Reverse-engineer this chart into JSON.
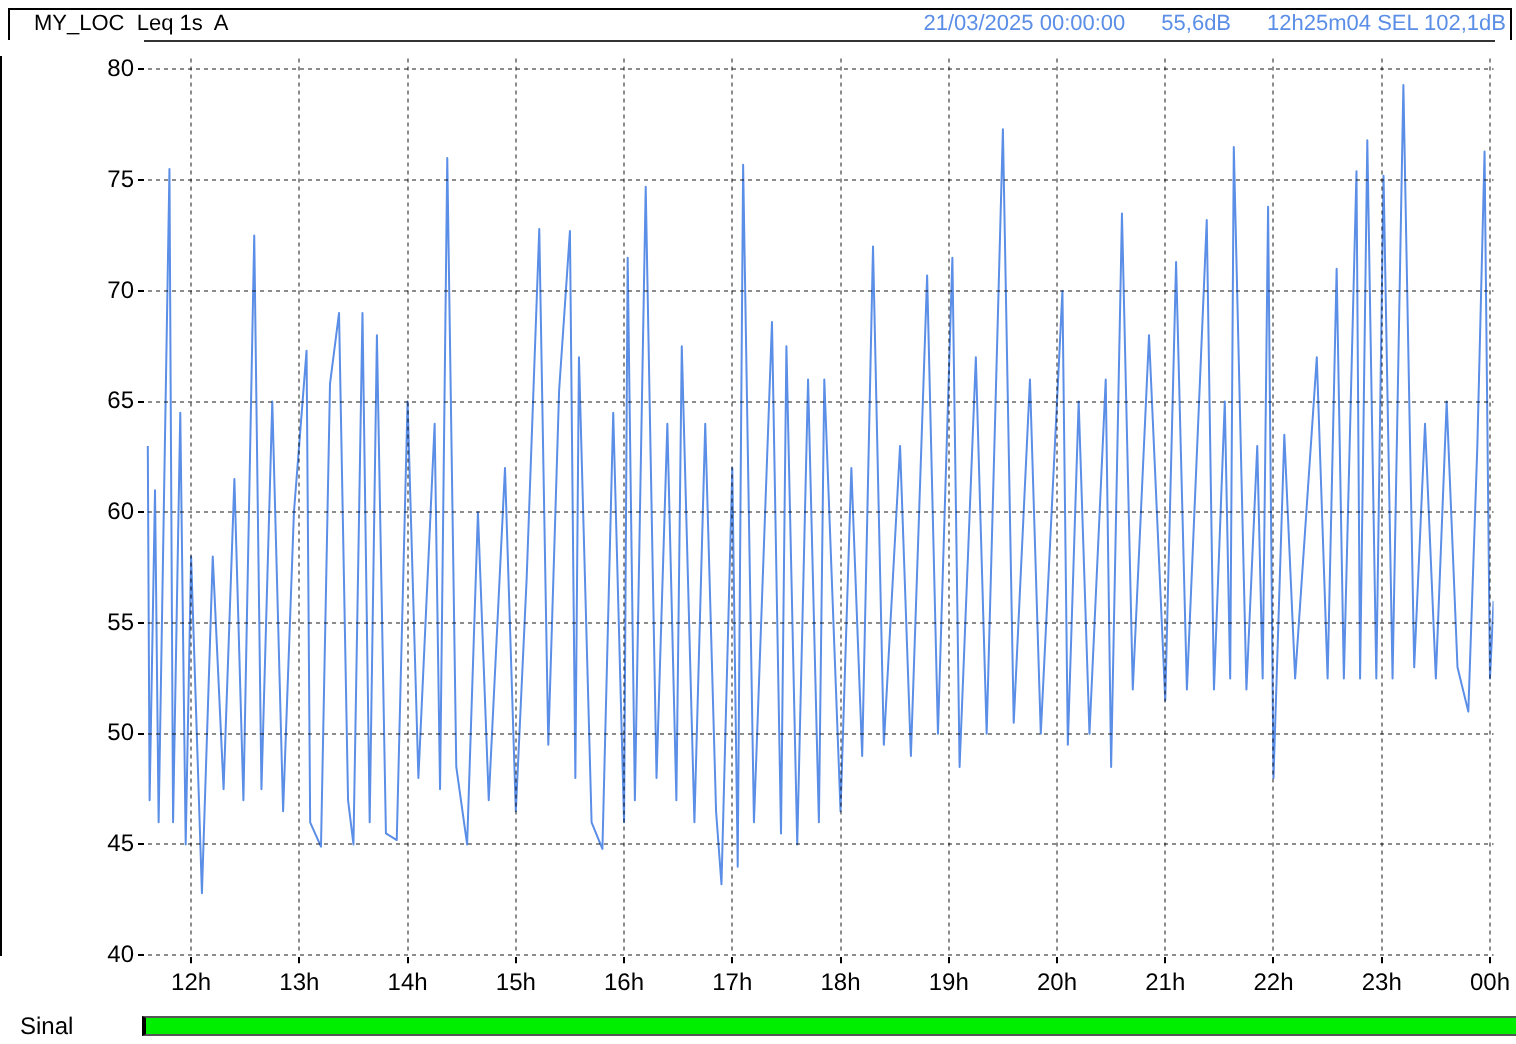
{
  "chart_data": {
    "type": "line",
    "title": "MY_LOC  Leq 1s  A",
    "annotations": [
      "21/03/2025 00:00:00",
      "55,6dB",
      "12h25m04 SEL 102,1dB",
      "Sinal"
    ],
    "x": [
      "2025-03-21T11:36",
      "2025-03-21T11:37",
      "2025-03-21T11:40",
      "2025-03-21T11:42",
      "2025-03-21T11:48",
      "2025-03-21T11:50",
      "2025-03-21T11:54",
      "2025-03-21T11:57",
      "2025-03-21T12:00",
      "2025-03-21T12:06",
      "2025-03-21T12:12",
      "2025-03-21T12:18",
      "2025-03-21T12:24",
      "2025-03-21T12:29",
      "2025-03-21T12:35",
      "2025-03-21T12:39",
      "2025-03-21T12:45",
      "2025-03-21T12:51",
      "2025-03-21T12:57",
      "2025-03-21T13:04",
      "2025-03-21T13:06",
      "2025-03-21T13:12",
      "2025-03-21T13:17",
      "2025-03-21T13:22",
      "2025-03-21T13:27",
      "2025-03-21T13:30",
      "2025-03-21T13:35",
      "2025-03-21T13:39",
      "2025-03-21T13:43",
      "2025-03-21T13:48",
      "2025-03-21T13:54",
      "2025-03-21T14:00",
      "2025-03-21T14:06",
      "2025-03-21T14:15",
      "2025-03-21T14:18",
      "2025-03-21T14:22",
      "2025-03-21T14:27",
      "2025-03-21T14:33",
      "2025-03-21T14:39",
      "2025-03-21T14:45",
      "2025-03-21T14:54",
      "2025-03-21T15:00",
      "2025-03-21T15:06",
      "2025-03-21T15:13",
      "2025-03-21T15:18",
      "2025-03-21T15:24",
      "2025-03-21T15:30",
      "2025-03-21T15:33",
      "2025-03-21T15:35",
      "2025-03-21T15:42",
      "2025-03-21T15:48",
      "2025-03-21T15:54",
      "2025-03-21T16:00",
      "2025-03-21T16:02",
      "2025-03-21T16:06",
      "2025-03-21T16:12",
      "2025-03-21T16:18",
      "2025-03-21T16:24",
      "2025-03-21T16:29",
      "2025-03-21T16:32",
      "2025-03-21T16:39",
      "2025-03-21T16:45",
      "2025-03-21T16:51",
      "2025-03-21T16:54",
      "2025-03-21T17:00",
      "2025-03-21T17:03",
      "2025-03-21T17:06",
      "2025-03-21T17:12",
      "2025-03-21T17:22",
      "2025-03-21T17:27",
      "2025-03-21T17:30",
      "2025-03-21T17:36",
      "2025-03-21T17:42",
      "2025-03-21T17:48",
      "2025-03-21T17:51",
      "2025-03-21T18:00",
      "2025-03-21T18:06",
      "2025-03-21T18:12",
      "2025-03-21T18:18",
      "2025-03-21T18:24",
      "2025-03-21T18:33",
      "2025-03-21T18:39",
      "2025-03-21T18:48",
      "2025-03-21T18:54",
      "2025-03-21T19:02",
      "2025-03-21T19:06",
      "2025-03-21T19:15",
      "2025-03-21T19:21",
      "2025-03-21T19:30",
      "2025-03-21T19:36",
      "2025-03-21T19:45",
      "2025-03-21T19:51",
      "2025-03-21T20:03",
      "2025-03-21T20:06",
      "2025-03-21T20:12",
      "2025-03-21T20:18",
      "2025-03-21T20:27",
      "2025-03-21T20:30",
      "2025-03-21T20:36",
      "2025-03-21T20:42",
      "2025-03-21T20:51",
      "2025-03-21T21:00",
      "2025-03-21T21:06",
      "2025-03-21T21:12",
      "2025-03-21T21:23",
      "2025-03-21T21:27",
      "2025-03-21T21:33",
      "2025-03-21T21:36",
      "2025-03-21T21:38",
      "2025-03-21T21:45",
      "2025-03-21T21:51",
      "2025-03-21T21:54",
      "2025-03-21T21:57",
      "2025-03-21T22:00",
      "2025-03-21T22:06",
      "2025-03-21T22:12",
      "2025-03-21T22:24",
      "2025-03-21T22:30",
      "2025-03-21T22:35",
      "2025-03-21T22:39",
      "2025-03-21T22:46",
      "2025-03-21T22:48",
      "2025-03-21T22:52",
      "2025-03-21T22:57",
      "2025-03-21T23:01",
      "2025-03-21T23:06",
      "2025-03-21T23:12",
      "2025-03-21T23:18",
      "2025-03-21T23:24",
      "2025-03-21T23:30",
      "2025-03-21T23:36",
      "2025-03-21T23:42",
      "2025-03-21T23:48",
      "2025-03-21T23:53",
      "2025-03-21T23:57",
      "2025-03-22T00:00",
      "2025-03-22T00:02"
    ],
    "series": [
      {
        "color": "#5b8ee6",
        "values": [
          63,
          47,
          61,
          46,
          75.5,
          46,
          64.5,
          45,
          58,
          42.8,
          58,
          47.5,
          61.5,
          47,
          72.5,
          47.5,
          65,
          46.5,
          60,
          67.3,
          46,
          44.9,
          65.8,
          69,
          47,
          45,
          69,
          46,
          68,
          45.5,
          45.2,
          65,
          48,
          64,
          47.5,
          76,
          48.5,
          45,
          60,
          47,
          62,
          46.5,
          57,
          72.8,
          49.5,
          65.5,
          72.7,
          48,
          67,
          46,
          44.8,
          64.5,
          46,
          71.5,
          47,
          74.7,
          48,
          64,
          47,
          67.5,
          46,
          64,
          46.5,
          43.2,
          62,
          44,
          75.7,
          46,
          68.6,
          45.5,
          67.5,
          45,
          66,
          46,
          66,
          46.5,
          62,
          49,
          72,
          49.5,
          63,
          49,
          70.7,
          50,
          71.5,
          48.5,
          67,
          50,
          77.3,
          50.5,
          66,
          50,
          70,
          49.5,
          65,
          50,
          66,
          48.5,
          73.5,
          52,
          68,
          51.5,
          71.3,
          52,
          73.2,
          52,
          65,
          52.5,
          76.5,
          52,
          63,
          52.5,
          73.8,
          48,
          63.5,
          52.5,
          67,
          52.5,
          71,
          52.5,
          75.4,
          52.5,
          76.8,
          52.5,
          75.2,
          52.5,
          79.3,
          53,
          64,
          52.5,
          65,
          53,
          51,
          63,
          76.3,
          52.5,
          56
        ]
      }
    ],
    "xlim": [
      "2025-03-21T11:35",
      "2025-03-22T00:02"
    ],
    "xticks": [
      {
        "value": "2025-03-21T12:00",
        "label": "12h"
      },
      {
        "value": "2025-03-21T13:00",
        "label": "13h"
      },
      {
        "value": "2025-03-21T14:00",
        "label": "14h"
      },
      {
        "value": "2025-03-21T15:00",
        "label": "15h"
      },
      {
        "value": "2025-03-21T16:00",
        "label": "16h"
      },
      {
        "value": "2025-03-21T17:00",
        "label": "17h"
      },
      {
        "value": "2025-03-21T18:00",
        "label": "18h"
      },
      {
        "value": "2025-03-21T19:00",
        "label": "19h"
      },
      {
        "value": "2025-03-21T20:00",
        "label": "20h"
      },
      {
        "value": "2025-03-21T21:00",
        "label": "21h"
      },
      {
        "value": "2025-03-21T22:00",
        "label": "22h"
      },
      {
        "value": "2025-03-21T23:00",
        "label": "23h"
      },
      {
        "value": "2025-03-22T00:00",
        "label": "00h"
      }
    ],
    "ylim": [
      40,
      80.5
    ],
    "yticks": [
      40,
      45,
      50,
      55,
      60,
      65,
      70,
      75,
      80
    ],
    "grid": true,
    "legend": false,
    "marker": "none",
    "line_style": "solid"
  }
}
